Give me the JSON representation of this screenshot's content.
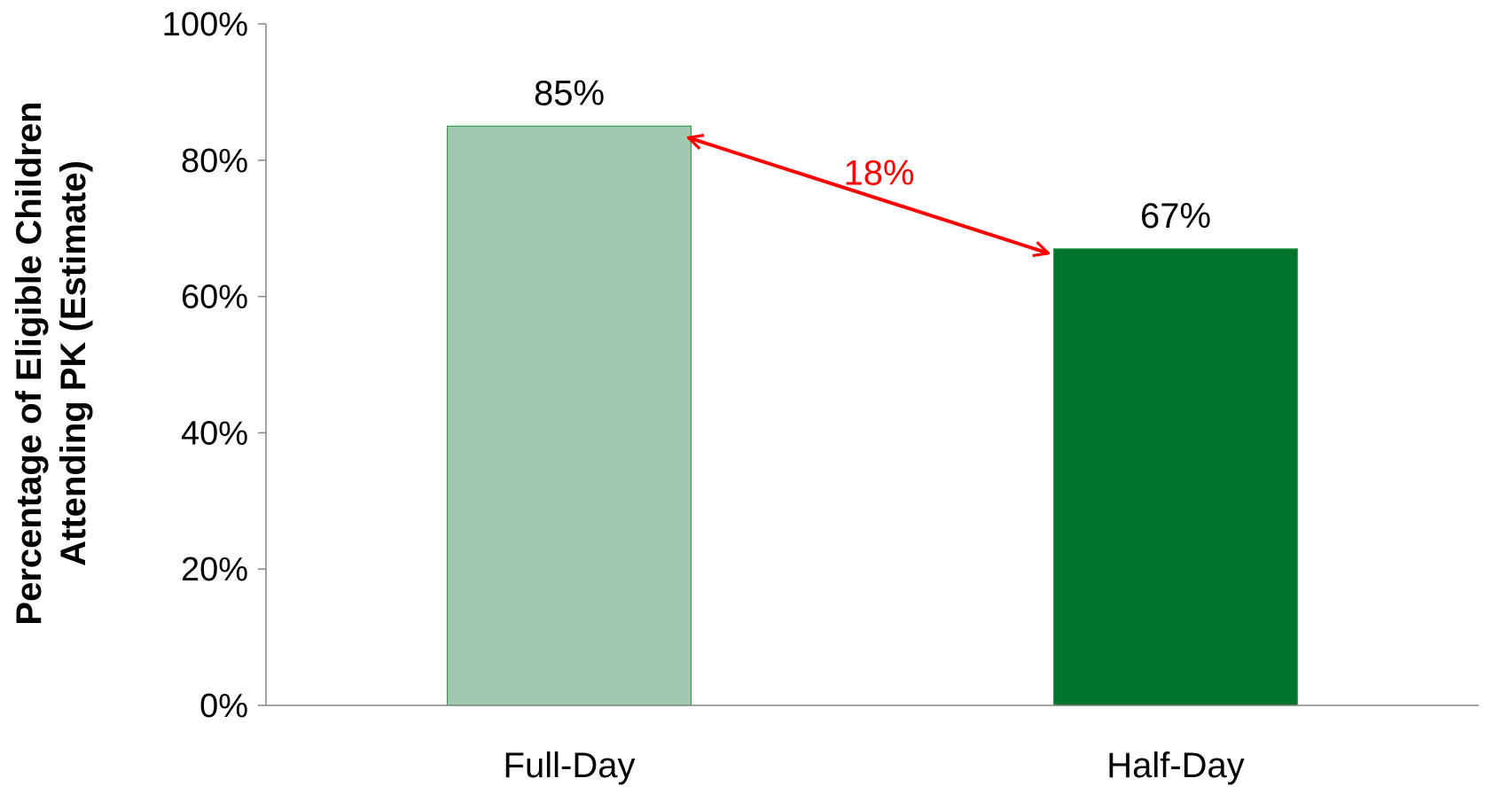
{
  "chart_data": {
    "type": "bar",
    "categories": [
      "Full-Day",
      "Half-Day"
    ],
    "values": [
      85,
      67
    ],
    "value_labels": [
      "85%",
      "67%"
    ],
    "bar_colors": [
      "#a1c9b0",
      "#00732f"
    ],
    "bar_edge_color": "#3a9a4a",
    "title": "",
    "xlabel": "",
    "ylabel_lines": [
      "Percentage of Eligible Children",
      "Attending PK (Estimate)"
    ],
    "ylim": [
      0,
      100
    ],
    "yticks": [
      0,
      20,
      40,
      60,
      80,
      100
    ],
    "ytick_labels": [
      "0%",
      "20%",
      "40%",
      "60%",
      "80%",
      "100%"
    ],
    "grid": false,
    "annotation": {
      "label": "18%",
      "color": "#ff0000",
      "from_category": "Full-Day",
      "to_category": "Half-Day",
      "style": "double-arrow"
    }
  }
}
